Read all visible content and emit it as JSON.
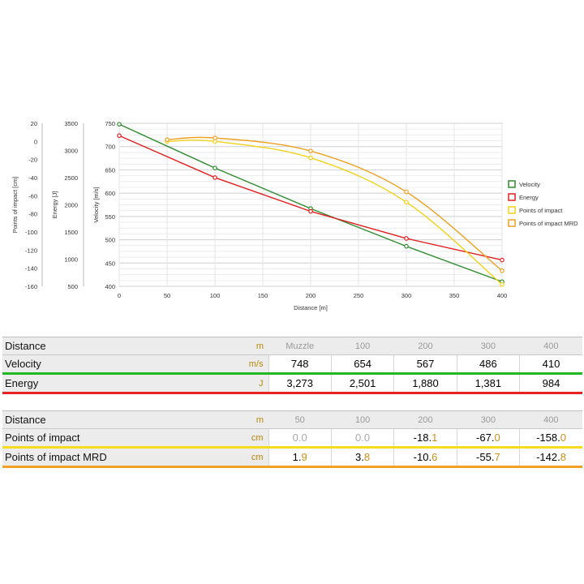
{
  "chart_data": {
    "type": "line",
    "xlabel": "Distance [m]",
    "x_ticks": [
      0,
      50,
      100,
      150,
      200,
      250,
      300,
      350,
      400
    ],
    "xlim": [
      0,
      400
    ],
    "axes": [
      {
        "id": "poi",
        "label": "Points of impact [cm]",
        "ticks": [
          20,
          0,
          -20,
          -40,
          -60,
          -80,
          -100,
          -120,
          -140,
          -160
        ],
        "range": [
          -160,
          20
        ]
      },
      {
        "id": "energy",
        "label": "Energy [J]",
        "ticks": [
          3500,
          3000,
          2500,
          2000,
          1500,
          1000,
          500
        ],
        "range": [
          500,
          3500
        ]
      },
      {
        "id": "velocity",
        "label": "Velocity [m/s]",
        "ticks": [
          750,
          700,
          650,
          600,
          550,
          500,
          450,
          400
        ],
        "range": [
          400,
          750
        ]
      }
    ],
    "grid": true,
    "legend_position": "right",
    "series": [
      {
        "name": "Velocity",
        "axis": "velocity",
        "color": "#2e8b2e",
        "smooth": false,
        "x": [
          0,
          100,
          200,
          300,
          400
        ],
        "values": [
          748,
          654,
          567,
          486,
          410
        ]
      },
      {
        "name": "Energy",
        "axis": "energy",
        "color": "#e02020",
        "smooth": false,
        "x": [
          0,
          100,
          200,
          300,
          400
        ],
        "values": [
          3273,
          2501,
          1880,
          1381,
          984
        ]
      },
      {
        "name": "Points of impact",
        "axis": "poi",
        "color": "#f2d21a",
        "smooth": true,
        "x": [
          50,
          100,
          200,
          300,
          400
        ],
        "values": [
          0.0,
          0.0,
          -18.1,
          -67.0,
          -158.0
        ]
      },
      {
        "name": "Points of impact MRD",
        "axis": "poi",
        "color": "#f0a020",
        "smooth": true,
        "x": [
          50,
          100,
          200,
          300,
          400
        ],
        "values": [
          1.9,
          3.8,
          -10.6,
          -55.7,
          -142.8
        ]
      }
    ]
  },
  "table1": {
    "header": {
      "label": "Distance",
      "unit": "m",
      "values": [
        "Muzzle",
        "100",
        "200",
        "300",
        "400"
      ]
    },
    "rows": [
      {
        "label": "Velocity",
        "unit": "m/s",
        "color": "#22b822",
        "values": [
          "748",
          "654",
          "567",
          "486",
          "410"
        ]
      },
      {
        "label": "Energy",
        "unit": "J",
        "color": "#e62222",
        "values": [
          "3,273",
          "2,501",
          "1,880",
          "1,381",
          "984"
        ]
      }
    ]
  },
  "table2": {
    "header": {
      "label": "Distance",
      "unit": "m",
      "values": [
        "50",
        "100",
        "200",
        "300",
        "400"
      ]
    },
    "rows": [
      {
        "label": "Points of impact",
        "unit": "cm",
        "color": "#f5dc1e",
        "values": [
          {
            "i": "0.0",
            "f": "",
            "grey": true
          },
          {
            "i": "0.0",
            "f": "",
            "grey": true
          },
          {
            "i": "-18.",
            "f": "1"
          },
          {
            "i": "-67.",
            "f": "0"
          },
          {
            "i": "-158.",
            "f": "0"
          }
        ]
      },
      {
        "label": "Points of impact MRD",
        "unit": "cm",
        "color": "#f0a023",
        "values": [
          {
            "i": "1.",
            "f": "9"
          },
          {
            "i": "3.",
            "f": "8"
          },
          {
            "i": "-10.",
            "f": "6"
          },
          {
            "i": "-55.",
            "f": "7"
          },
          {
            "i": "-142.",
            "f": "8"
          }
        ]
      }
    ]
  }
}
